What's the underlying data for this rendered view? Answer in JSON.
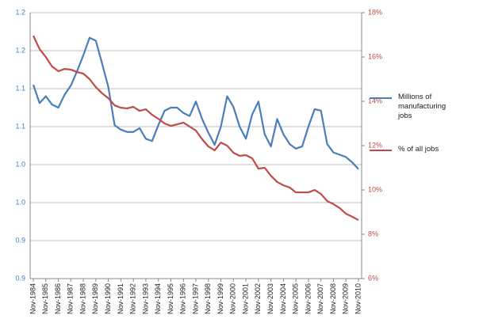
{
  "chart_data": {
    "type": "line",
    "categories": [
      "Nov-1984",
      null,
      "Nov-1985",
      null,
      "Nov-1986",
      null,
      "Nov-1987",
      null,
      "Nov-1988",
      null,
      "Nov-1989",
      null,
      "Nov-1990",
      null,
      "Nov-1991",
      null,
      "Nov-1992",
      null,
      "Nov-1993",
      null,
      "Nov-1994",
      null,
      "Nov-1995",
      null,
      "Nov-1996",
      null,
      "Nov-1997",
      null,
      "Nov-1998",
      null,
      "Nov-1999",
      null,
      "Nov-2000",
      null,
      "Nov-2001",
      null,
      "Nov-2002",
      null,
      "Nov-2003",
      null,
      "Nov-2004",
      null,
      "Nov-2005",
      null,
      "Nov-2006",
      null,
      "Nov-2007",
      null,
      "Nov-2008",
      null,
      "Nov-2009",
      null,
      "Nov-2010"
    ],
    "series": [
      {
        "name": "Millions of manufacturing jobs",
        "color": "#4a7ebb",
        "axis": "y",
        "values": [
          1.105,
          1.081,
          1.09,
          1.079,
          1.075,
          1.092,
          1.104,
          1.123,
          1.144,
          1.167,
          1.163,
          1.133,
          1.102,
          1.052,
          1.046,
          1.043,
          1.043,
          1.048,
          1.034,
          1.031,
          1.052,
          1.071,
          1.075,
          1.075,
          1.068,
          1.064,
          1.083,
          1.06,
          1.042,
          1.026,
          1.05,
          1.09,
          1.076,
          1.05,
          1.034,
          1.066,
          1.083,
          1.04,
          1.024,
          1.06,
          1.04,
          1.027,
          1.021,
          1.024,
          1.05,
          1.073,
          1.071,
          1.027,
          1.016,
          1.013,
          1.01,
          1.003,
          0.994
        ]
      },
      {
        "name": "% of all jobs",
        "color": "#be4b48",
        "axis": "y2",
        "values": [
          16.96,
          16.36,
          16.0,
          15.57,
          15.36,
          15.46,
          15.43,
          15.32,
          15.25,
          15.0,
          14.64,
          14.36,
          14.14,
          13.82,
          13.71,
          13.68,
          13.75,
          13.57,
          13.64,
          13.39,
          13.21,
          13.0,
          12.89,
          12.96,
          13.04,
          12.86,
          12.68,
          12.29,
          11.96,
          11.79,
          12.14,
          12.0,
          11.68,
          11.54,
          11.57,
          11.43,
          10.96,
          11.0,
          10.64,
          10.36,
          10.21,
          10.11,
          9.89,
          9.89,
          9.89,
          10.0,
          9.82,
          9.5,
          9.36,
          9.18,
          8.93,
          8.79,
          8.64
        ]
      }
    ],
    "ylim": [
      0.85,
      1.2
    ],
    "yticks": [
      {
        "value": 0.85,
        "label": "0.9"
      },
      0.9,
      {
        "value": 0.95,
        "label": "1.0"
      },
      {
        "value": 1,
        "label": "1.0"
      },
      {
        "value": 1.05,
        "label": "1.1"
      },
      1.1,
      {
        "value": 1.15,
        "label": "1.2"
      },
      1.2
    ],
    "y2lim": [
      6,
      18
    ],
    "y2ticks": [
      {
        "value": 6,
        "label": "6%"
      },
      {
        "value": 8,
        "label": "8%"
      },
      {
        "value": 10,
        "label": "10%"
      },
      {
        "value": 12,
        "label": "12%"
      },
      {
        "value": 14,
        "label": "14%"
      },
      {
        "value": 16,
        "label": "16%"
      },
      {
        "value": 18,
        "label": "18%"
      }
    ],
    "grid": true,
    "legend": "right"
  }
}
